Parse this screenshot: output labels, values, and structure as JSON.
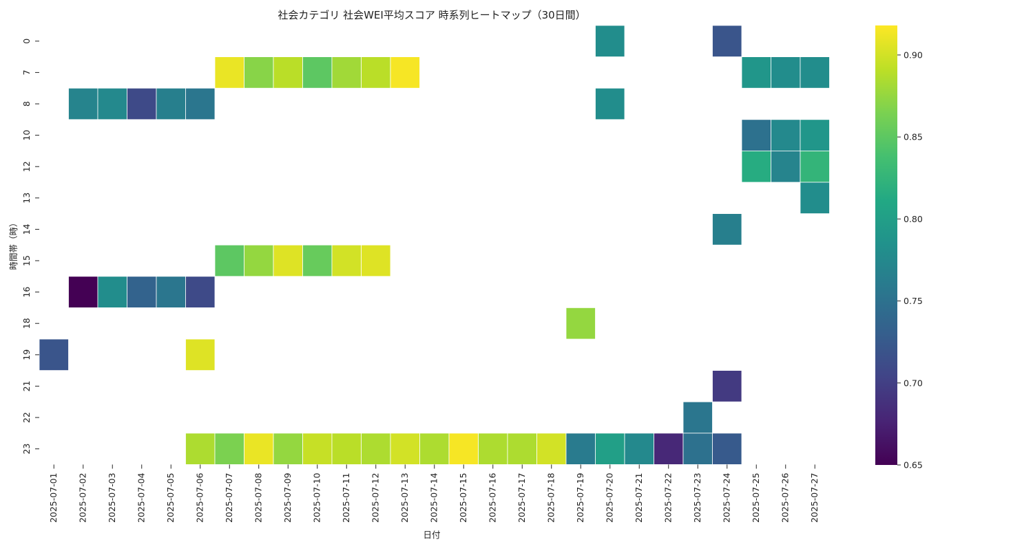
{
  "chart_data": {
    "type": "heatmap",
    "title": "社会カテゴリ 社会WEI平均スコア 時系列ヒートマップ（30日間）",
    "xlabel": "日付",
    "ylabel": "時間帯（時）",
    "colormap": "viridis",
    "colorbar": {
      "range": [
        0.65,
        0.918
      ],
      "ticks": [
        "0.65",
        "0.70",
        "0.75",
        "0.80",
        "0.85",
        "0.90"
      ]
    },
    "x": [
      "2025-07-01",
      "2025-07-02",
      "2025-07-03",
      "2025-07-04",
      "2025-07-05",
      "2025-07-06",
      "2025-07-07",
      "2025-07-08",
      "2025-07-09",
      "2025-07-10",
      "2025-07-11",
      "2025-07-12",
      "2025-07-13",
      "2025-07-14",
      "2025-07-15",
      "2025-07-16",
      "2025-07-17",
      "2025-07-18",
      "2025-07-19",
      "2025-07-20",
      "2025-07-21",
      "2025-07-22",
      "2025-07-23",
      "2025-07-24",
      "2025-07-25",
      "2025-07-26",
      "2025-07-27"
    ],
    "y": [
      "0",
      "7",
      "8",
      "10",
      "12",
      "13",
      "14",
      "15",
      "16",
      "18",
      "19",
      "21",
      "22",
      "23"
    ],
    "values": [
      [
        null,
        null,
        null,
        null,
        null,
        null,
        null,
        null,
        null,
        null,
        null,
        null,
        null,
        null,
        null,
        null,
        null,
        null,
        null,
        0.78,
        null,
        null,
        null,
        0.72,
        null,
        null,
        null
      ],
      [
        null,
        null,
        null,
        null,
        null,
        null,
        0.91,
        0.87,
        0.89,
        0.85,
        0.88,
        0.89,
        0.915,
        null,
        null,
        null,
        null,
        null,
        null,
        null,
        null,
        null,
        null,
        null,
        0.79,
        0.78,
        0.78
      ],
      [
        null,
        0.77,
        0.775,
        0.71,
        0.765,
        0.755,
        null,
        null,
        null,
        null,
        null,
        null,
        null,
        null,
        null,
        null,
        null,
        null,
        null,
        0.78,
        null,
        null,
        null,
        null,
        null,
        null,
        null
      ],
      [
        null,
        null,
        null,
        null,
        null,
        null,
        null,
        null,
        null,
        null,
        null,
        null,
        null,
        null,
        null,
        null,
        null,
        null,
        null,
        null,
        null,
        null,
        null,
        null,
        0.75,
        0.775,
        0.79
      ],
      [
        null,
        null,
        null,
        null,
        null,
        null,
        null,
        null,
        null,
        null,
        null,
        null,
        null,
        null,
        null,
        null,
        null,
        null,
        null,
        null,
        null,
        null,
        null,
        null,
        0.815,
        0.77,
        0.825
      ],
      [
        null,
        null,
        null,
        null,
        null,
        null,
        null,
        null,
        null,
        null,
        null,
        null,
        null,
        null,
        null,
        null,
        null,
        null,
        null,
        null,
        null,
        null,
        null,
        null,
        null,
        null,
        0.78
      ],
      [
        null,
        null,
        null,
        null,
        null,
        null,
        null,
        null,
        null,
        null,
        null,
        null,
        null,
        null,
        null,
        null,
        null,
        null,
        null,
        null,
        null,
        null,
        null,
        0.765,
        null,
        null,
        null
      ],
      [
        null,
        null,
        null,
        null,
        null,
        null,
        0.85,
        0.875,
        0.905,
        0.855,
        0.9,
        0.905,
        null,
        null,
        null,
        null,
        null,
        null,
        null,
        null,
        null,
        null,
        null,
        null,
        null,
        null,
        null
      ],
      [
        null,
        0.65,
        0.78,
        0.735,
        0.755,
        0.71,
        null,
        null,
        null,
        null,
        null,
        null,
        null,
        null,
        null,
        null,
        null,
        null,
        null,
        null,
        null,
        null,
        null,
        null,
        null,
        null,
        null
      ],
      [
        null,
        null,
        null,
        null,
        null,
        null,
        null,
        null,
        null,
        null,
        null,
        null,
        null,
        null,
        null,
        null,
        null,
        null,
        0.875,
        null,
        null,
        null,
        null,
        null,
        null,
        null,
        null
      ],
      [
        0.72,
        null,
        null,
        null,
        null,
        0.905,
        null,
        null,
        null,
        null,
        null,
        null,
        null,
        null,
        null,
        null,
        null,
        null,
        null,
        null,
        null,
        null,
        null,
        null,
        null,
        null,
        null
      ],
      [
        null,
        null,
        null,
        null,
        null,
        null,
        null,
        null,
        null,
        null,
        null,
        null,
        null,
        null,
        null,
        null,
        null,
        null,
        null,
        null,
        null,
        null,
        null,
        0.695,
        null,
        null,
        null
      ],
      [
        null,
        null,
        null,
        null,
        null,
        null,
        null,
        null,
        null,
        null,
        null,
        null,
        null,
        null,
        null,
        null,
        null,
        null,
        null,
        null,
        null,
        null,
        0.755,
        null,
        null,
        null,
        null
      ],
      [
        null,
        null,
        null,
        null,
        null,
        0.885,
        0.865,
        0.91,
        0.875,
        0.895,
        0.89,
        0.885,
        0.9,
        0.885,
        0.915,
        0.885,
        0.885,
        0.9,
        0.76,
        0.8,
        0.775,
        0.68,
        0.75,
        0.725,
        null,
        null,
        null
      ]
    ]
  }
}
